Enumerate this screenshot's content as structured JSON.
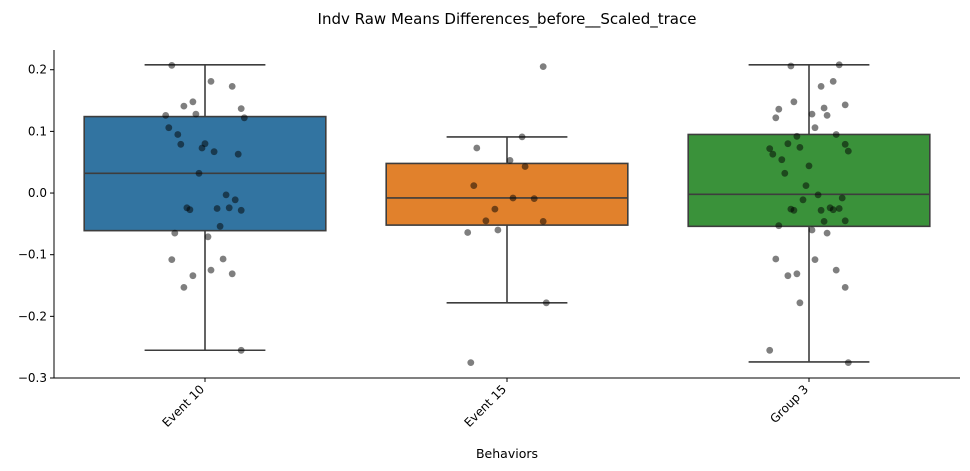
{
  "chart_data": {
    "type": "box",
    "title": "Indv Raw Means Differences_before__Scaled_trace",
    "xlabel": "Behaviors",
    "ylabel": "",
    "ylim": [
      -0.3,
      0.232
    ],
    "y_ticks": [
      -0.3,
      -0.2,
      -0.1,
      0.0,
      0.1,
      0.2
    ],
    "y_tick_labels": [
      "−0.3",
      "−0.2",
      "−0.1",
      "0.0",
      "0.1",
      "0.2"
    ],
    "categories": [
      "Event 10",
      "Event 15",
      "Group 3"
    ],
    "grid": false,
    "boxes": [
      {
        "name": "Event 10",
        "color": "#3274a1",
        "whisker_low": -0.255,
        "q1": -0.061,
        "median": 0.032,
        "q3": 0.124,
        "whisker_high": 0.208
      },
      {
        "name": "Event 15",
        "color": "#e1812c",
        "whisker_low": -0.178,
        "q1": -0.052,
        "median": -0.008,
        "q3": 0.048,
        "whisker_high": 0.091
      },
      {
        "name": "Group 3",
        "color": "#3a923a",
        "whisker_low": -0.274,
        "q1": -0.054,
        "median": -0.002,
        "q3": 0.095,
        "whisker_high": 0.208
      }
    ],
    "points": [
      [
        0.207,
        0.181,
        0.173,
        0.148,
        0.141,
        0.137,
        0.128,
        0.126,
        0.122,
        0.106,
        0.095,
        0.08,
        0.079,
        0.073,
        0.067,
        0.063,
        0.032,
        -0.003,
        -0.011,
        -0.024,
        -0.024,
        -0.025,
        -0.027,
        -0.028,
        -0.054,
        -0.065,
        -0.071,
        -0.107,
        -0.108,
        -0.125,
        -0.131,
        -0.134,
        -0.153,
        -0.255
      ],
      [
        0.205,
        0.091,
        0.073,
        0.053,
        0.043,
        0.012,
        -0.008,
        -0.009,
        -0.026,
        -0.045,
        -0.046,
        -0.06,
        -0.064,
        -0.178,
        -0.275
      ],
      [
        0.208,
        0.206,
        0.181,
        0.173,
        0.148,
        0.143,
        0.138,
        0.136,
        0.128,
        0.126,
        0.122,
        0.106,
        0.095,
        0.092,
        0.08,
        0.079,
        0.074,
        0.072,
        0.068,
        0.063,
        0.054,
        0.044,
        0.032,
        0.012,
        -0.003,
        -0.008,
        -0.011,
        -0.024,
        -0.025,
        -0.026,
        -0.027,
        -0.028,
        -0.028,
        -0.045,
        -0.046,
        -0.053,
        -0.06,
        -0.065,
        -0.107,
        -0.108,
        -0.125,
        -0.131,
        -0.134,
        -0.153,
        -0.178,
        -0.255,
        -0.275
      ]
    ],
    "point_color": "#000000",
    "point_opacity": 0.5
  }
}
